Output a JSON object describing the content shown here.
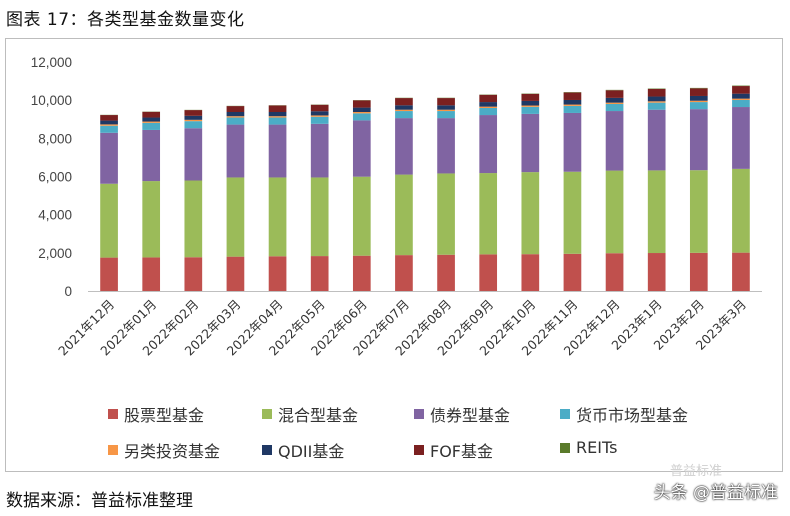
{
  "figure_title": "图表 17：各类型基金数量变化",
  "source": "数据来源：普益标准整理",
  "watermark": "头条 @普益标准",
  "watermark_top": "普益标准",
  "chart_data": {
    "type": "bar",
    "stacked": true,
    "title": "",
    "xlabel": "",
    "ylabel": "",
    "ylim": [
      0,
      12000
    ],
    "yticks": [
      0,
      2000,
      4000,
      6000,
      8000,
      10000,
      12000
    ],
    "ytick_labels": [
      "0",
      "2,000",
      "4,000",
      "6,000",
      "8,000",
      "10,000",
      "12,000"
    ],
    "grid": false,
    "legend_position": "bottom",
    "categories": [
      "2021年12月",
      "2022年01月",
      "2022年02月",
      "2022年03月",
      "2022年04月",
      "2022年05月",
      "2022年06月",
      "2022年07月",
      "2022年08月",
      "2022年09月",
      "2022年10月",
      "2022年11月",
      "2022年12月",
      "2023年1月",
      "2023年2月",
      "2023年3月"
    ],
    "series": [
      {
        "name": "股票型基金",
        "color": "#c0504d",
        "values": [
          1750,
          1760,
          1770,
          1800,
          1820,
          1830,
          1850,
          1880,
          1900,
          1920,
          1930,
          1950,
          1980,
          1990,
          2000,
          2010
        ]
      },
      {
        "name": "混合型基金",
        "color": "#9bbb59",
        "values": [
          3870,
          4000,
          4020,
          4150,
          4130,
          4120,
          4140,
          4220,
          4260,
          4260,
          4300,
          4300,
          4330,
          4330,
          4330,
          4390
        ]
      },
      {
        "name": "债券型基金",
        "color": "#8064a2",
        "values": [
          2670,
          2680,
          2740,
          2770,
          2770,
          2810,
          2950,
          2960,
          2900,
          3040,
          3050,
          3080,
          3120,
          3180,
          3200,
          3240
        ]
      },
      {
        "name": "货币市场型基金",
        "color": "#4bacc6",
        "values": [
          370,
          370,
          370,
          370,
          370,
          370,
          370,
          370,
          370,
          370,
          370,
          370,
          370,
          370,
          370,
          370
        ]
      },
      {
        "name": "另类投资基金",
        "color": "#f79646",
        "values": [
          70,
          70,
          70,
          70,
          70,
          70,
          70,
          70,
          70,
          70,
          70,
          70,
          70,
          70,
          70,
          70
        ]
      },
      {
        "name": "QDII基金",
        "color": "#1f3864",
        "values": [
          200,
          210,
          210,
          220,
          220,
          220,
          230,
          230,
          230,
          240,
          240,
          240,
          250,
          250,
          250,
          260
        ]
      },
      {
        "name": "FOF基金",
        "color": "#7b2020",
        "values": [
          290,
          300,
          300,
          310,
          340,
          340,
          380,
          380,
          380,
          380,
          370,
          390,
          400,
          400,
          400,
          400
        ]
      },
      {
        "name": "REITs",
        "color": "#5a7a2a",
        "values": [
          11,
          12,
          12,
          12,
          12,
          12,
          13,
          15,
          16,
          16,
          18,
          20,
          20,
          22,
          23,
          24
        ]
      }
    ]
  }
}
